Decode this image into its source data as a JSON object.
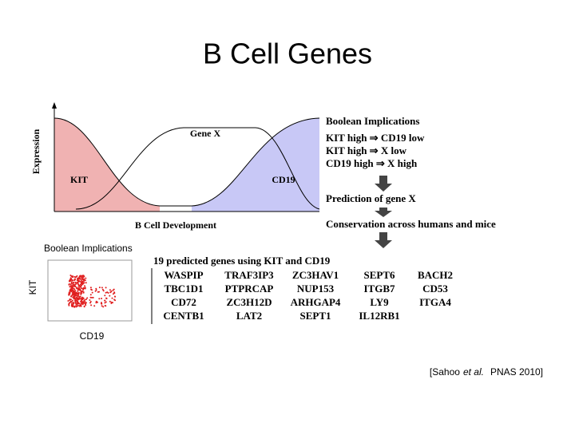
{
  "title": "B Cell Genes",
  "diagram": {
    "y_axis_label": "Expression",
    "x_axis_label": "B Cell Development",
    "curves": [
      {
        "label": "KIT"
      },
      {
        "label": "Gene X"
      },
      {
        "label": "CD19"
      }
    ]
  },
  "boolean_panel": {
    "title": "Boolean Implications",
    "rules": [
      "KIT high ⇒ CD19 low",
      "KIT high ⇒ X low",
      "CD19 high ⇒ X high"
    ],
    "steps": [
      "Prediction of gene X",
      "Conservation across humans and mice"
    ]
  },
  "scatter": {
    "caption": "Boolean Implications",
    "y_label": "KIT",
    "x_label": "CD19"
  },
  "gene_table": {
    "title": "19 predicted genes using KIT and CD19",
    "rows": [
      [
        "WASPIP",
        "TRAF3IP3",
        "ZC3HAV1",
        "SEPT6",
        "BACH2"
      ],
      [
        "TBC1D1",
        "PTPRCAP",
        "NUP153",
        "ITGB7",
        "CD53"
      ],
      [
        "CD72",
        "ZC3H12D",
        "ARHGAP4",
        "LY9",
        "ITGA4"
      ],
      [
        "CENTB1",
        "LAT2",
        "SEPT1",
        "IL12RB1"
      ]
    ]
  },
  "citation": {
    "before": "[Sahoo",
    "italic": "et al.",
    "after": "PNAS 2010]"
  }
}
